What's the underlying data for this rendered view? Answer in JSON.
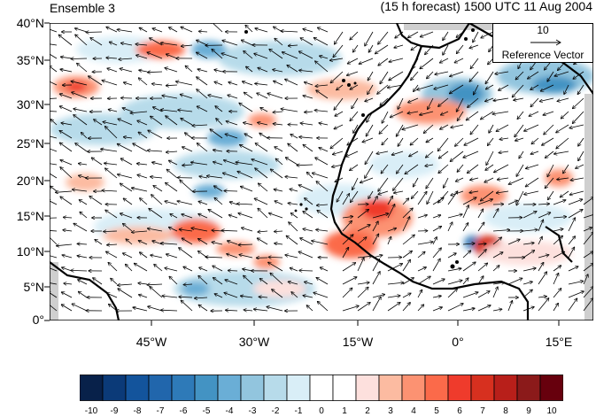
{
  "header": {
    "ensemble_label": "Ensemble 3",
    "forecast_label": "(15 h forecast) 1500 UTC 11 Aug 2004"
  },
  "map": {
    "lat_labels": [
      "40°N",
      "35°N",
      "30°N",
      "25°N",
      "20°N",
      "15°N",
      "10°N",
      "5°N",
      "0°"
    ],
    "lon_labels": [
      "45°W",
      "30°W",
      "15°W",
      "0°",
      "15°E"
    ],
    "reference_vector": {
      "value": "10",
      "label": "Reference Vector"
    }
  },
  "colorbar": {
    "labels": [
      "-10",
      "-9",
      "-8",
      "-7",
      "-6",
      "-5",
      "-4",
      "-3",
      "-2",
      "-1",
      "0",
      "1",
      "2",
      "3",
      "4",
      "5",
      "6",
      "7",
      "8",
      "9",
      "10"
    ],
    "colors": [
      "#08214a",
      "#0b3a78",
      "#13549c",
      "#2166ac",
      "#2e7ab8",
      "#4393c3",
      "#6aaed6",
      "#92c5de",
      "#b7dbea",
      "#d9eef7",
      "#ffffff",
      "#ffffff",
      "#fde0dd",
      "#fcbba1",
      "#fc9272",
      "#fb6a4a",
      "#ef3b2c",
      "#d7301f",
      "#b81f1a",
      "#8b1a1a",
      "#67000d"
    ]
  }
}
